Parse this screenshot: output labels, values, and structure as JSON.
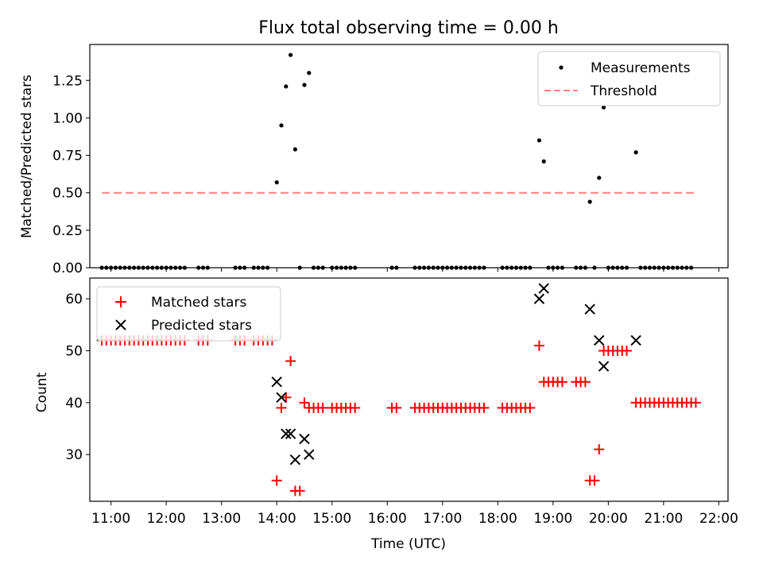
{
  "chart_data": [
    {
      "type": "scatter",
      "title": "Flux total observing time = 0.00 h",
      "xlabel": "",
      "ylabel": "Matched/Predicted stars",
      "xlim": [
        "10:37",
        "22:10"
      ],
      "ylim": [
        0,
        1.49
      ],
      "yticks": [
        "0.00",
        "0.25",
        "0.50",
        "0.75",
        "1.00",
        "1.25"
      ],
      "legend": {
        "location": "top-right",
        "entries": [
          "Measurements",
          "Threshold"
        ]
      },
      "colors": {
        "measurements": "#000000",
        "threshold": "#ff7f7f"
      },
      "threshold": {
        "y": 0.5,
        "x_start": "10:50",
        "x_end": "21:35"
      },
      "series": [
        {
          "name": "Measurements",
          "points": [
            [
              "10:50",
              0
            ],
            [
              "10:55",
              0
            ],
            [
              "11:00",
              0
            ],
            [
              "11:05",
              0
            ],
            [
              "11:10",
              0
            ],
            [
              "11:15",
              0
            ],
            [
              "11:20",
              0
            ],
            [
              "11:25",
              0
            ],
            [
              "11:30",
              0
            ],
            [
              "11:35",
              0
            ],
            [
              "11:40",
              0
            ],
            [
              "11:45",
              0
            ],
            [
              "11:50",
              0
            ],
            [
              "11:55",
              0
            ],
            [
              "12:00",
              0
            ],
            [
              "12:05",
              0
            ],
            [
              "12:10",
              0
            ],
            [
              "12:15",
              0
            ],
            [
              "12:20",
              0
            ],
            [
              "12:35",
              0
            ],
            [
              "12:40",
              0
            ],
            [
              "12:45",
              0
            ],
            [
              "13:15",
              0
            ],
            [
              "13:20",
              0
            ],
            [
              "13:25",
              0
            ],
            [
              "13:35",
              0
            ],
            [
              "13:40",
              0
            ],
            [
              "13:45",
              0
            ],
            [
              "13:50",
              0
            ],
            [
              "14:00",
              0.57
            ],
            [
              "14:05",
              0.95
            ],
            [
              "14:10",
              1.21
            ],
            [
              "14:15",
              1.42
            ],
            [
              "14:20",
              0.79
            ],
            [
              "14:25",
              0
            ],
            [
              "14:30",
              1.22
            ],
            [
              "14:35",
              1.3
            ],
            [
              "14:40",
              0
            ],
            [
              "14:45",
              0
            ],
            [
              "14:50",
              0
            ],
            [
              "15:00",
              0
            ],
            [
              "15:05",
              0
            ],
            [
              "15:10",
              0
            ],
            [
              "15:15",
              0
            ],
            [
              "15:20",
              0
            ],
            [
              "15:25",
              0
            ],
            [
              "16:05",
              0
            ],
            [
              "16:10",
              0
            ],
            [
              "16:30",
              0
            ],
            [
              "16:35",
              0
            ],
            [
              "16:40",
              0
            ],
            [
              "16:45",
              0
            ],
            [
              "16:50",
              0
            ],
            [
              "16:55",
              0
            ],
            [
              "17:00",
              0
            ],
            [
              "17:05",
              0
            ],
            [
              "17:10",
              0
            ],
            [
              "17:15",
              0
            ],
            [
              "17:20",
              0
            ],
            [
              "17:25",
              0
            ],
            [
              "17:30",
              0
            ],
            [
              "17:35",
              0
            ],
            [
              "17:40",
              0
            ],
            [
              "17:45",
              0
            ],
            [
              "18:05",
              0
            ],
            [
              "18:10",
              0
            ],
            [
              "18:15",
              0
            ],
            [
              "18:20",
              0
            ],
            [
              "18:25",
              0
            ],
            [
              "18:30",
              0
            ],
            [
              "18:35",
              0
            ],
            [
              "18:45",
              0.85
            ],
            [
              "18:50",
              0.71
            ],
            [
              "18:55",
              0
            ],
            [
              "19:00",
              0
            ],
            [
              "19:05",
              0
            ],
            [
              "19:10",
              0
            ],
            [
              "19:25",
              0
            ],
            [
              "19:30",
              0
            ],
            [
              "19:35",
              0
            ],
            [
              "19:40",
              0.44
            ],
            [
              "19:45",
              0
            ],
            [
              "19:50",
              0.6
            ],
            [
              "19:55",
              1.07
            ],
            [
              "20:00",
              0
            ],
            [
              "20:05",
              0
            ],
            [
              "20:10",
              0
            ],
            [
              "20:15",
              0
            ],
            [
              "20:20",
              0
            ],
            [
              "20:30",
              0.77
            ],
            [
              "20:35",
              0
            ],
            [
              "20:40",
              0
            ],
            [
              "20:45",
              0
            ],
            [
              "20:50",
              0
            ],
            [
              "20:55",
              0
            ],
            [
              "21:00",
              0
            ],
            [
              "21:05",
              0
            ],
            [
              "21:10",
              0
            ],
            [
              "21:15",
              0
            ],
            [
              "21:20",
              0
            ],
            [
              "21:25",
              0
            ],
            [
              "21:30",
              0
            ]
          ]
        },
        {
          "name": "Threshold",
          "points": [
            [
              "10:50",
              0.5
            ],
            [
              "21:35",
              0.5
            ]
          ]
        }
      ]
    },
    {
      "type": "scatter",
      "title": "",
      "xlabel": "Time (UTC)",
      "ylabel": "Count",
      "xlim": [
        "10:37",
        "22:10"
      ],
      "ylim": [
        21,
        64
      ],
      "yticks": [
        "30",
        "40",
        "50",
        "60"
      ],
      "xticks": [
        "11:00",
        "12:00",
        "13:00",
        "14:00",
        "15:00",
        "16:00",
        "17:00",
        "18:00",
        "19:00",
        "20:00",
        "21:00",
        "22:00"
      ],
      "legend": {
        "location": "top-left",
        "entries": [
          "Matched stars",
          "Predicted stars"
        ]
      },
      "colors": {
        "matched": "#ff0000",
        "predicted": "#000000"
      },
      "series": [
        {
          "name": "Matched stars",
          "points": [
            [
              "10:50",
              52
            ],
            [
              "10:55",
              52
            ],
            [
              "11:00",
              52
            ],
            [
              "11:05",
              52
            ],
            [
              "11:10",
              52
            ],
            [
              "11:15",
              52
            ],
            [
              "11:20",
              52
            ],
            [
              "11:25",
              52
            ],
            [
              "11:30",
              52
            ],
            [
              "11:35",
              52
            ],
            [
              "11:40",
              52
            ],
            [
              "11:45",
              52
            ],
            [
              "11:50",
              52
            ],
            [
              "11:55",
              52
            ],
            [
              "12:00",
              52
            ],
            [
              "12:05",
              52
            ],
            [
              "12:10",
              52
            ],
            [
              "12:15",
              52
            ],
            [
              "12:20",
              52
            ],
            [
              "12:35",
              52
            ],
            [
              "12:40",
              52
            ],
            [
              "12:45",
              52
            ],
            [
              "13:15",
              52
            ],
            [
              "13:20",
              52
            ],
            [
              "13:25",
              52
            ],
            [
              "13:35",
              52
            ],
            [
              "13:40",
              52
            ],
            [
              "13:45",
              52
            ],
            [
              "13:50",
              52
            ],
            [
              "13:55",
              52
            ],
            [
              "14:00",
              25
            ],
            [
              "14:05",
              39
            ],
            [
              "14:10",
              41
            ],
            [
              "14:15",
              48
            ],
            [
              "14:20",
              23
            ],
            [
              "14:25",
              23
            ],
            [
              "14:30",
              40
            ],
            [
              "14:35",
              39
            ],
            [
              "14:40",
              39
            ],
            [
              "14:45",
              39
            ],
            [
              "14:50",
              39
            ],
            [
              "15:00",
              39
            ],
            [
              "15:05",
              39
            ],
            [
              "15:10",
              39
            ],
            [
              "15:15",
              39
            ],
            [
              "15:20",
              39
            ],
            [
              "15:25",
              39
            ],
            [
              "16:05",
              39
            ],
            [
              "16:10",
              39
            ],
            [
              "16:30",
              39
            ],
            [
              "16:35",
              39
            ],
            [
              "16:40",
              39
            ],
            [
              "16:45",
              39
            ],
            [
              "16:50",
              39
            ],
            [
              "16:55",
              39
            ],
            [
              "17:00",
              39
            ],
            [
              "17:05",
              39
            ],
            [
              "17:10",
              39
            ],
            [
              "17:15",
              39
            ],
            [
              "17:20",
              39
            ],
            [
              "17:25",
              39
            ],
            [
              "17:30",
              39
            ],
            [
              "17:35",
              39
            ],
            [
              "17:40",
              39
            ],
            [
              "17:45",
              39
            ],
            [
              "18:05",
              39
            ],
            [
              "18:10",
              39
            ],
            [
              "18:15",
              39
            ],
            [
              "18:20",
              39
            ],
            [
              "18:25",
              39
            ],
            [
              "18:30",
              39
            ],
            [
              "18:35",
              39
            ],
            [
              "18:45",
              51
            ],
            [
              "18:50",
              44
            ],
            [
              "18:55",
              44
            ],
            [
              "19:00",
              44
            ],
            [
              "19:05",
              44
            ],
            [
              "19:10",
              44
            ],
            [
              "19:25",
              44
            ],
            [
              "19:30",
              44
            ],
            [
              "19:35",
              44
            ],
            [
              "19:40",
              25
            ],
            [
              "19:45",
              25
            ],
            [
              "19:50",
              31
            ],
            [
              "19:55",
              50
            ],
            [
              "20:00",
              50
            ],
            [
              "20:05",
              50
            ],
            [
              "20:10",
              50
            ],
            [
              "20:15",
              50
            ],
            [
              "20:20",
              50
            ],
            [
              "20:30",
              40
            ],
            [
              "20:35",
              40
            ],
            [
              "20:40",
              40
            ],
            [
              "20:45",
              40
            ],
            [
              "20:50",
              40
            ],
            [
              "20:55",
              40
            ],
            [
              "21:00",
              40
            ],
            [
              "21:05",
              40
            ],
            [
              "21:10",
              40
            ],
            [
              "21:15",
              40
            ],
            [
              "21:20",
              40
            ],
            [
              "21:25",
              40
            ],
            [
              "21:30",
              40
            ],
            [
              "21:35",
              40
            ]
          ]
        },
        {
          "name": "Predicted stars",
          "points": [
            [
              "14:00",
              44
            ],
            [
              "14:05",
              41
            ],
            [
              "14:10",
              34
            ],
            [
              "14:15",
              34
            ],
            [
              "14:20",
              29
            ],
            [
              "14:30",
              33
            ],
            [
              "14:35",
              30
            ],
            [
              "18:45",
              60
            ],
            [
              "18:50",
              62
            ],
            [
              "19:40",
              58
            ],
            [
              "19:50",
              52
            ],
            [
              "19:55",
              47
            ],
            [
              "20:30",
              52
            ]
          ]
        }
      ]
    }
  ]
}
